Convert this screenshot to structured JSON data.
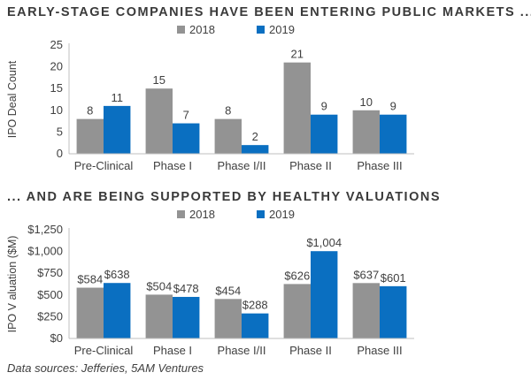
{
  "title_top": "EARLY-STAGE COMPANIES HAVE BEEN ENTERING PUBLIC MARKETS ...",
  "title_bottom": "... AND ARE BEING SUPPORTED BY HEALTHY VALUATIONS",
  "source": "Data sources: Jefferies, 5AM Ventures",
  "colors": {
    "2018": "#939393",
    "2019": "#0a6fc1"
  },
  "chart_data": [
    {
      "type": "bar",
      "title": "",
      "xlabel": "",
      "ylabel": "IPO Deal Count",
      "categories": [
        "Pre-Clinical",
        "Phase I",
        "Phase I/II",
        "Phase II",
        "Phase III"
      ],
      "series": [
        {
          "name": "2018",
          "values": [
            8,
            15,
            8,
            21,
            10
          ],
          "labels": [
            "8",
            "15",
            "8",
            "21",
            "10"
          ]
        },
        {
          "name": "2019",
          "values": [
            11,
            7,
            2,
            9,
            9
          ],
          "labels": [
            "11",
            "7",
            "2",
            "9",
            "9"
          ]
        }
      ],
      "ylim": [
        0,
        25
      ],
      "yticks": [
        "0",
        "5",
        "10",
        "15",
        "20",
        "25"
      ],
      "legend": "top-center",
      "grid": false
    },
    {
      "type": "bar",
      "title": "",
      "xlabel": "",
      "ylabel": "IPO V aluation ($M)",
      "categories": [
        "Pre-Clinical",
        "Phase I",
        "Phase I/II",
        "Phase II",
        "Phase III"
      ],
      "series": [
        {
          "name": "2018",
          "values": [
            584,
            504,
            454,
            626,
            637
          ],
          "labels": [
            "$584",
            "$504",
            "$454",
            "$626",
            "$637"
          ]
        },
        {
          "name": "2019",
          "values": [
            638,
            478,
            288,
            1004,
            601
          ],
          "labels": [
            "$638",
            "$478",
            "$288",
            "$1,004",
            "$601"
          ]
        }
      ],
      "ylim": [
        0,
        1250
      ],
      "yticks": [
        "$0",
        "$250",
        "$500",
        "$750",
        "$1,000",
        "$1,250"
      ],
      "legend": "top-center",
      "grid": false
    }
  ]
}
